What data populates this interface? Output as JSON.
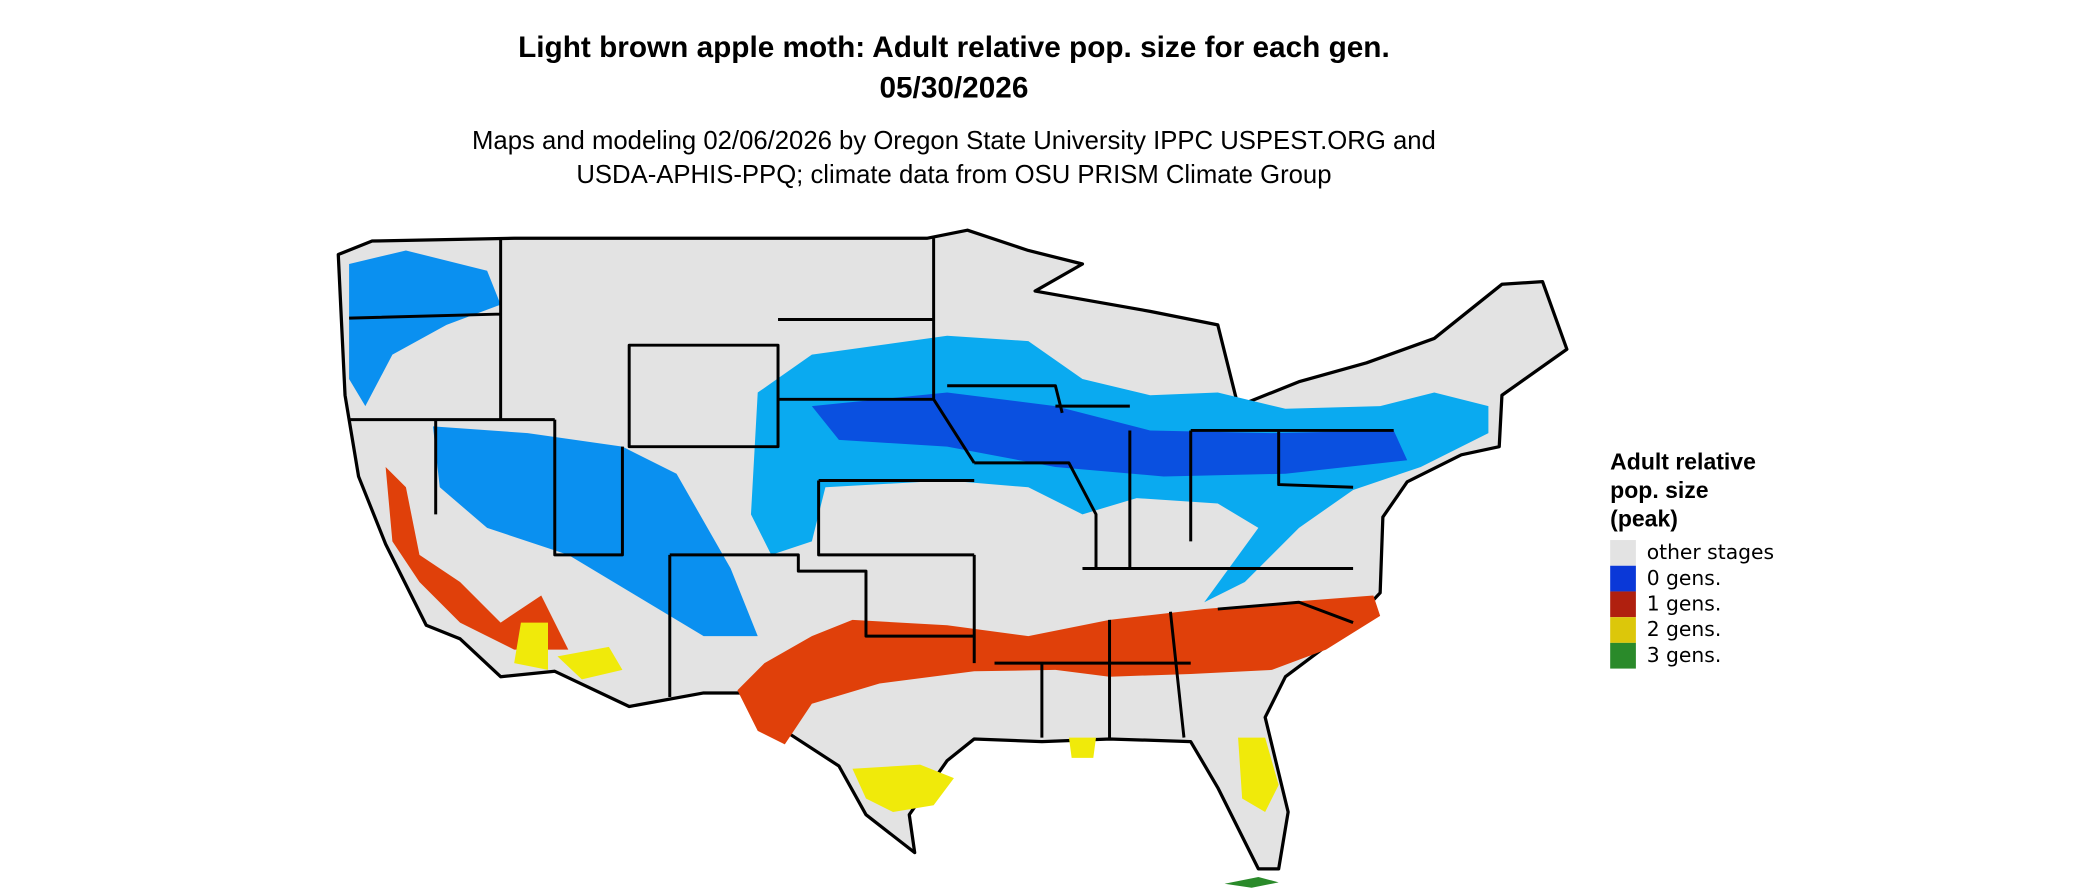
{
  "header": {
    "title": "Light brown apple moth: Adult relative pop. size for each gen.",
    "date": "05/30/2026",
    "subtitle": [
      "Maps and modeling 02/06/2026 by Oregon State University IPPC USPEST.ORG and",
      "USDA-APHIS-PPQ; climate data from OSU PRISM Climate Group"
    ]
  },
  "legend": {
    "title": [
      "Adult relative",
      "pop. size",
      "(peak)"
    ],
    "items": [
      {
        "label": "other stages",
        "color": "#e3e3e3"
      },
      {
        "label": "0 gens.",
        "color": "#0a38d8"
      },
      {
        "label": "1 gens.",
        "color": "#b0200f"
      },
      {
        "label": "2 gens.",
        "color": "#dcc70a"
      },
      {
        "label": "3 gens.",
        "color": "#2a8a2a"
      }
    ]
  }
}
